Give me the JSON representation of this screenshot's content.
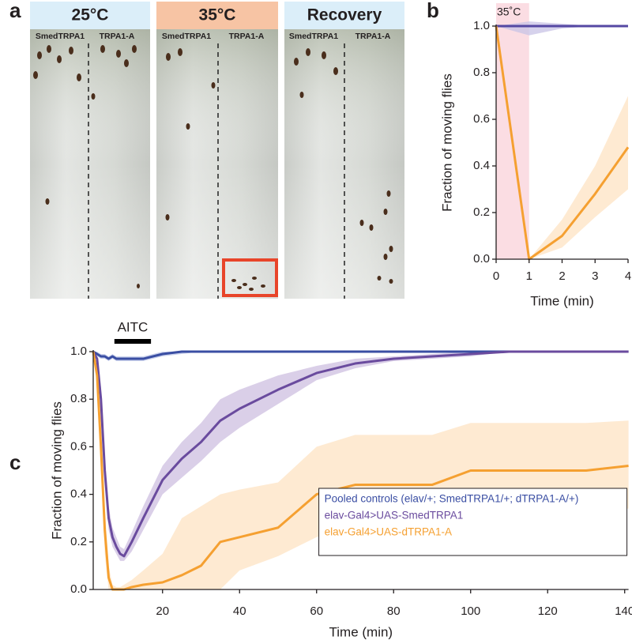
{
  "panel_a": {
    "label": "a",
    "panels": [
      {
        "title": "25°C",
        "labels": [
          "SmedTRPA1",
          "TRPA1-A"
        ]
      },
      {
        "title": "35°C",
        "labels": [
          "SmedTRPA1",
          "TRPA1-A"
        ]
      },
      {
        "title": "Recovery",
        "labels": [
          "SmedTRPA1",
          "TRPA1-A"
        ]
      }
    ]
  },
  "chart_data": [
    {
      "type": "line",
      "panel_label": "b",
      "xlabel": "Time (min)",
      "ylabel": "Fraction of moving flies",
      "shade": [
        0,
        1
      ],
      "shade_label": "35˚C",
      "shade_color": "#fbdde3",
      "x": [
        0,
        1,
        2,
        3,
        4
      ],
      "xlim": [
        0,
        4
      ],
      "xticks": [
        0,
        1,
        2,
        3,
        4
      ],
      "ylim": [
        0,
        1
      ],
      "yticks": [
        {
          "value": 0,
          "label": "0.0"
        },
        0.2,
        0.4,
        0.6,
        0.8,
        {
          "value": 1,
          "label": "1.0"
        }
      ],
      "series": [
        {
          "color": "#5548a3",
          "band_color": "#c8c3e6",
          "values": [
            1,
            1,
            1,
            1,
            1
          ],
          "lower": [
            1,
            0.96,
            0.99,
            1,
            1
          ],
          "upper": [
            1,
            1.02,
            1.01,
            1,
            1
          ]
        },
        {
          "color": "#f5a031",
          "band_color": "#fde3c3",
          "values": [
            1,
            0,
            0.1,
            0.28,
            0.48
          ],
          "lower": [
            1,
            0,
            0.05,
            0.18,
            0.3
          ],
          "upper": [
            1,
            0,
            0.17,
            0.4,
            0.7
          ]
        }
      ]
    },
    {
      "type": "line",
      "panel_label": "c",
      "xlabel": "Time (min)",
      "ylabel": "Fraction of moving flies",
      "annotation": "AITC",
      "annotation_span": [
        7.5,
        17
      ],
      "legend": "lower right",
      "x": [
        2,
        3,
        4,
        5,
        6,
        7,
        8,
        9,
        10,
        12,
        15,
        20,
        25,
        30,
        35,
        40,
        50,
        60,
        70,
        80,
        90,
        100,
        110,
        120,
        130,
        141
      ],
      "xlim": [
        2,
        141
      ],
      "xticks": [
        20,
        40,
        60,
        80,
        100,
        120,
        140
      ],
      "ylim": [
        0,
        1
      ],
      "yticks": [
        {
          "value": 0,
          "label": "0.0"
        },
        0.2,
        0.4,
        0.6,
        0.8,
        {
          "value": 1,
          "label": "1.0"
        }
      ],
      "series": [
        {
          "name": "Pooled controls (elav/+; SmedTRPA1/+; dTRPA1-A/+)",
          "color": "#3a4ea3",
          "band_color": "#b9c3e6",
          "values": [
            1,
            0.99,
            0.98,
            0.98,
            0.97,
            0.98,
            0.97,
            0.97,
            0.97,
            0.97,
            0.97,
            0.99,
            1,
            1,
            1,
            1,
            1,
            1,
            1,
            1,
            1,
            1,
            1,
            1,
            1,
            1
          ],
          "lower": [
            0.99,
            0.98,
            0.97,
            0.97,
            0.96,
            0.97,
            0.96,
            0.96,
            0.96,
            0.96,
            0.96,
            0.98,
            0.99,
            1,
            1,
            1,
            1,
            1,
            1,
            1,
            1,
            1,
            1,
            1,
            1,
            1
          ],
          "upper": [
            1,
            1,
            0.99,
            0.99,
            0.98,
            0.99,
            0.98,
            0.98,
            0.98,
            0.98,
            0.98,
            1,
            1,
            1,
            1,
            1,
            1,
            1,
            1,
            1,
            1,
            1,
            1,
            1,
            1,
            1
          ]
        },
        {
          "name": "elav-Gal4>UAS-SmedTRPA1",
          "color": "#6a4b9e",
          "band_color": "#cdbfe0",
          "values": [
            1,
            0.97,
            0.8,
            0.5,
            0.3,
            0.22,
            0.18,
            0.15,
            0.14,
            0.2,
            0.3,
            0.46,
            0.55,
            0.62,
            0.71,
            0.76,
            0.84,
            0.91,
            0.95,
            0.97,
            0.98,
            0.99,
            1,
            1,
            1,
            1
          ],
          "lower": [
            1,
            0.96,
            0.75,
            0.45,
            0.25,
            0.18,
            0.15,
            0.12,
            0.12,
            0.16,
            0.25,
            0.4,
            0.47,
            0.54,
            0.62,
            0.68,
            0.78,
            0.88,
            0.93,
            0.96,
            0.97,
            0.98,
            1,
            1,
            1,
            1
          ],
          "upper": [
            1,
            0.98,
            0.85,
            0.55,
            0.35,
            0.26,
            0.22,
            0.18,
            0.17,
            0.24,
            0.35,
            0.52,
            0.62,
            0.7,
            0.8,
            0.84,
            0.9,
            0.94,
            0.97,
            0.98,
            0.99,
            1,
            1,
            1,
            1,
            1
          ]
        },
        {
          "name": "elav-Gal4>UAS-dTRPA1-A",
          "color": "#f5a031",
          "band_color": "#fde3c3",
          "values": [
            1,
            0.9,
            0.6,
            0.25,
            0.05,
            0,
            0,
            0,
            0,
            0.01,
            0.02,
            0.03,
            0.06,
            0.1,
            0.2,
            0.22,
            0.26,
            0.4,
            0.44,
            0.44,
            0.44,
            0.5,
            0.5,
            0.5,
            0.5,
            0.52
          ],
          "lower": [
            1,
            0.85,
            0.5,
            0.15,
            0,
            0,
            0,
            0,
            0,
            0,
            0,
            0,
            0,
            0,
            0,
            0.08,
            0.14,
            0.22,
            0.26,
            0.26,
            0.26,
            0.33,
            0.33,
            0.33,
            0.33,
            0.34
          ],
          "upper": [
            1,
            0.95,
            0.7,
            0.35,
            0.1,
            0.02,
            0.01,
            0.01,
            0.02,
            0.04,
            0.08,
            0.15,
            0.3,
            0.35,
            0.4,
            0.42,
            0.45,
            0.6,
            0.65,
            0.65,
            0.65,
            0.7,
            0.7,
            0.7,
            0.7,
            0.71
          ]
        }
      ]
    }
  ]
}
